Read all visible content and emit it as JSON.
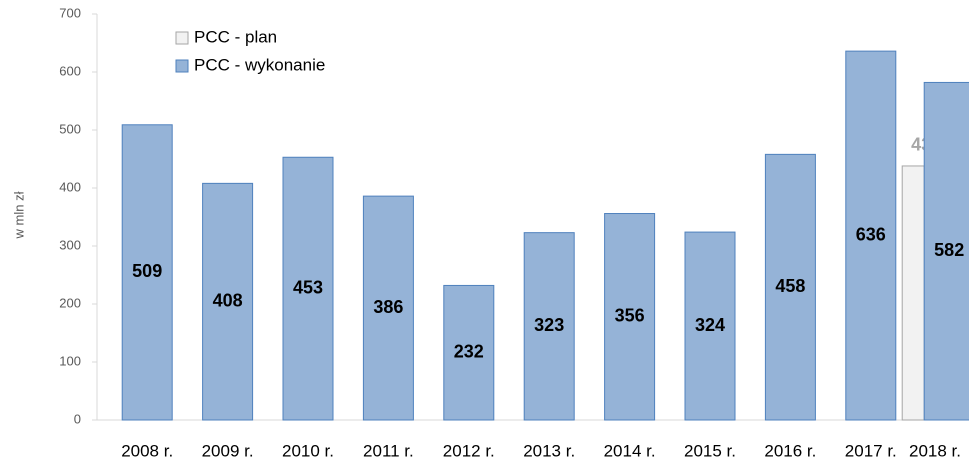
{
  "chart_data": {
    "type": "bar",
    "y_label": "w mln zł",
    "categories": [
      "2008 r.",
      "2009 r.",
      "2010 r.",
      "2011 r.",
      "2012 r.",
      "2013 r.",
      "2014 r.",
      "2015 r.",
      "2016 r.",
      "2017 r.",
      "2018 r."
    ],
    "series": [
      {
        "name": "PCC - plan",
        "color": "#f2f2f2",
        "values": [
          null,
          null,
          null,
          null,
          null,
          null,
          null,
          null,
          null,
          null,
          438
        ]
      },
      {
        "name": "PCC - wykonanie",
        "color": "#95b3d7",
        "values": [
          509,
          408,
          453,
          386,
          232,
          323,
          356,
          324,
          458,
          636,
          582
        ]
      }
    ],
    "ylim": [
      0,
      700
    ],
    "yticks": [
      0,
      100,
      200,
      300,
      400,
      500,
      600,
      700
    ],
    "grid": false,
    "legend": "top-left"
  }
}
